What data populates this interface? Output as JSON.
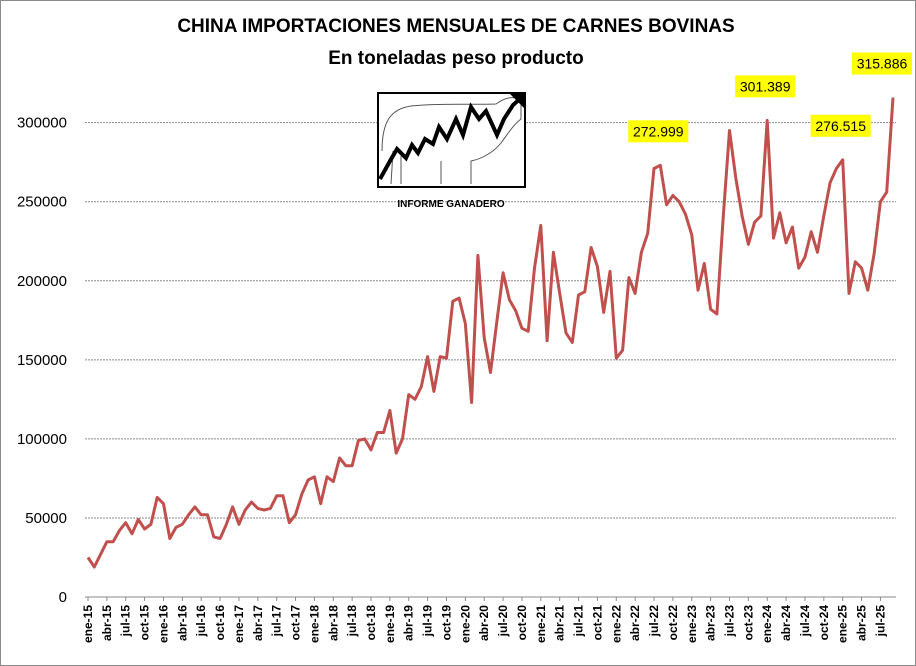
{
  "chart_data": {
    "type": "line",
    "title": "CHINA IMPORTACIONES MENSUALES DE CARNES BOVINAS",
    "subtitle": "En toneladas peso producto",
    "xlabel": "",
    "ylabel": "",
    "ylim": [
      0,
      320000
    ],
    "yticks": [
      "0",
      "50000",
      "100000",
      "150000",
      "200000",
      "250000",
      "300000"
    ],
    "ytick_values": [
      0,
      50000,
      100000,
      150000,
      200000,
      250000,
      300000
    ],
    "grid": true,
    "x": [
      "ene-15",
      "feb-15",
      "mar-15",
      "abr-15",
      "may-15",
      "jun-15",
      "jul-15",
      "ago-15",
      "sep-15",
      "oct-15",
      "nov-15",
      "dic-15",
      "ene-16",
      "feb-16",
      "mar-16",
      "abr-16",
      "may-16",
      "jun-16",
      "jul-16",
      "ago-16",
      "sep-16",
      "oct-16",
      "nov-16",
      "dic-16",
      "ene-17",
      "feb-17",
      "mar-17",
      "abr-17",
      "may-17",
      "jun-17",
      "jul-17",
      "ago-17",
      "sep-17",
      "oct-17",
      "nov-17",
      "dic-17",
      "ene-18",
      "feb-18",
      "mar-18",
      "abr-18",
      "may-18",
      "jun-18",
      "jul-18",
      "ago-18",
      "sep-18",
      "oct-18",
      "nov-18",
      "dic-18",
      "ene-19",
      "feb-19",
      "mar-19",
      "abr-19",
      "may-19",
      "jun-19",
      "jul-19",
      "ago-19",
      "sep-19",
      "oct-19",
      "nov-19",
      "dic-19",
      "ene-20",
      "feb-20",
      "mar-20",
      "abr-20",
      "may-20",
      "jun-20",
      "jul-20",
      "ago-20",
      "sep-20",
      "oct-20",
      "nov-20",
      "dic-20",
      "ene-21",
      "feb-21",
      "mar-21",
      "abr-21",
      "may-21",
      "jun-21",
      "jul-21",
      "ago-21",
      "sep-21",
      "oct-21",
      "nov-21",
      "dic-21",
      "ene-22",
      "feb-22",
      "mar-22",
      "abr-22",
      "may-22",
      "jun-22",
      "jul-22",
      "ago-22",
      "sep-22",
      "oct-22",
      "nov-22",
      "dic-22",
      "ene-23",
      "feb-23",
      "mar-23",
      "abr-23",
      "may-23",
      "jun-23",
      "jul-23",
      "ago-23",
      "sep-23",
      "oct-23",
      "nov-23",
      "dic-23",
      "ene-24",
      "feb-24",
      "mar-24",
      "abr-24",
      "may-24",
      "jun-24",
      "jul-24",
      "ago-24",
      "sep-24",
      "oct-24",
      "nov-24",
      "dic-24",
      "ene-25",
      "feb-25",
      "mar-25",
      "abr-25",
      "may-25",
      "jun-25",
      "jul-25",
      "ago-25",
      "sep-25"
    ],
    "x_tick_labels": [
      "ene-15",
      "abr-15",
      "jul-15",
      "oct-15",
      "ene-16",
      "abr-16",
      "jul-16",
      "oct-16",
      "ene-17",
      "abr-17",
      "jul-17",
      "oct-17",
      "ene-18",
      "abr-18",
      "jul-18",
      "oct-18",
      "ene-19",
      "abr-19",
      "jul-19",
      "oct-19",
      "ene-20",
      "abr-20",
      "jul-20",
      "oct-20",
      "ene-21",
      "abr-21",
      "jul-21",
      "oct-21",
      "ene-22",
      "abr-22",
      "jul-22",
      "oct-22",
      "ene-23",
      "abr-23",
      "jul-23",
      "oct-23",
      "ene-24",
      "abr-24",
      "jul-24",
      "oct-24",
      "ene-25",
      "abr-25",
      "jul-25"
    ],
    "series": [
      {
        "name": "",
        "color": "#c0504d",
        "values": [
          25000,
          19000,
          27000,
          35000,
          35000,
          42000,
          47000,
          40000,
          49000,
          43000,
          46000,
          63000,
          59000,
          37000,
          44000,
          46000,
          52000,
          57000,
          52000,
          52000,
          38000,
          37000,
          46000,
          57000,
          46000,
          55000,
          60000,
          56000,
          55000,
          56000,
          64000,
          64000,
          47000,
          52000,
          65000,
          74000,
          76000,
          59000,
          76000,
          73000,
          88000,
          83000,
          83000,
          99000,
          100000,
          93000,
          104000,
          104000,
          118000,
          91000,
          100000,
          128000,
          125000,
          133000,
          152000,
          130000,
          152000,
          151000,
          187000,
          189000,
          173000,
          123000,
          216000,
          164000,
          142000,
          174000,
          205000,
          188000,
          181000,
          170000,
          168000,
          208000,
          235000,
          162000,
          218000,
          192000,
          167000,
          161000,
          191000,
          193000,
          221000,
          209000,
          180000,
          206000,
          151000,
          156000,
          202000,
          192000,
          218000,
          230000,
          271000,
          272999,
          248000,
          254000,
          250000,
          242000,
          229000,
          194000,
          211000,
          182000,
          179000,
          240000,
          295000,
          265000,
          241000,
          223000,
          237000,
          241000,
          301389,
          227000,
          243000,
          224000,
          234000,
          208000,
          215000,
          231000,
          218000,
          241000,
          262000,
          271000,
          276515,
          192000,
          212000,
          208000,
          194000,
          217000,
          250000,
          256000,
          315886
        ]
      }
    ],
    "annotations": [
      {
        "label": "272.999",
        "index": 91,
        "value": 272999
      },
      {
        "label": "301.389",
        "index": 108,
        "value": 301389
      },
      {
        "label": "276.515",
        "index": 120,
        "value": 276515
      },
      {
        "label": "315.886",
        "index": 128,
        "value": 315886
      }
    ],
    "annotation_bg": "#ffff00"
  },
  "logo": {
    "caption": "INFORME GANADERO"
  }
}
